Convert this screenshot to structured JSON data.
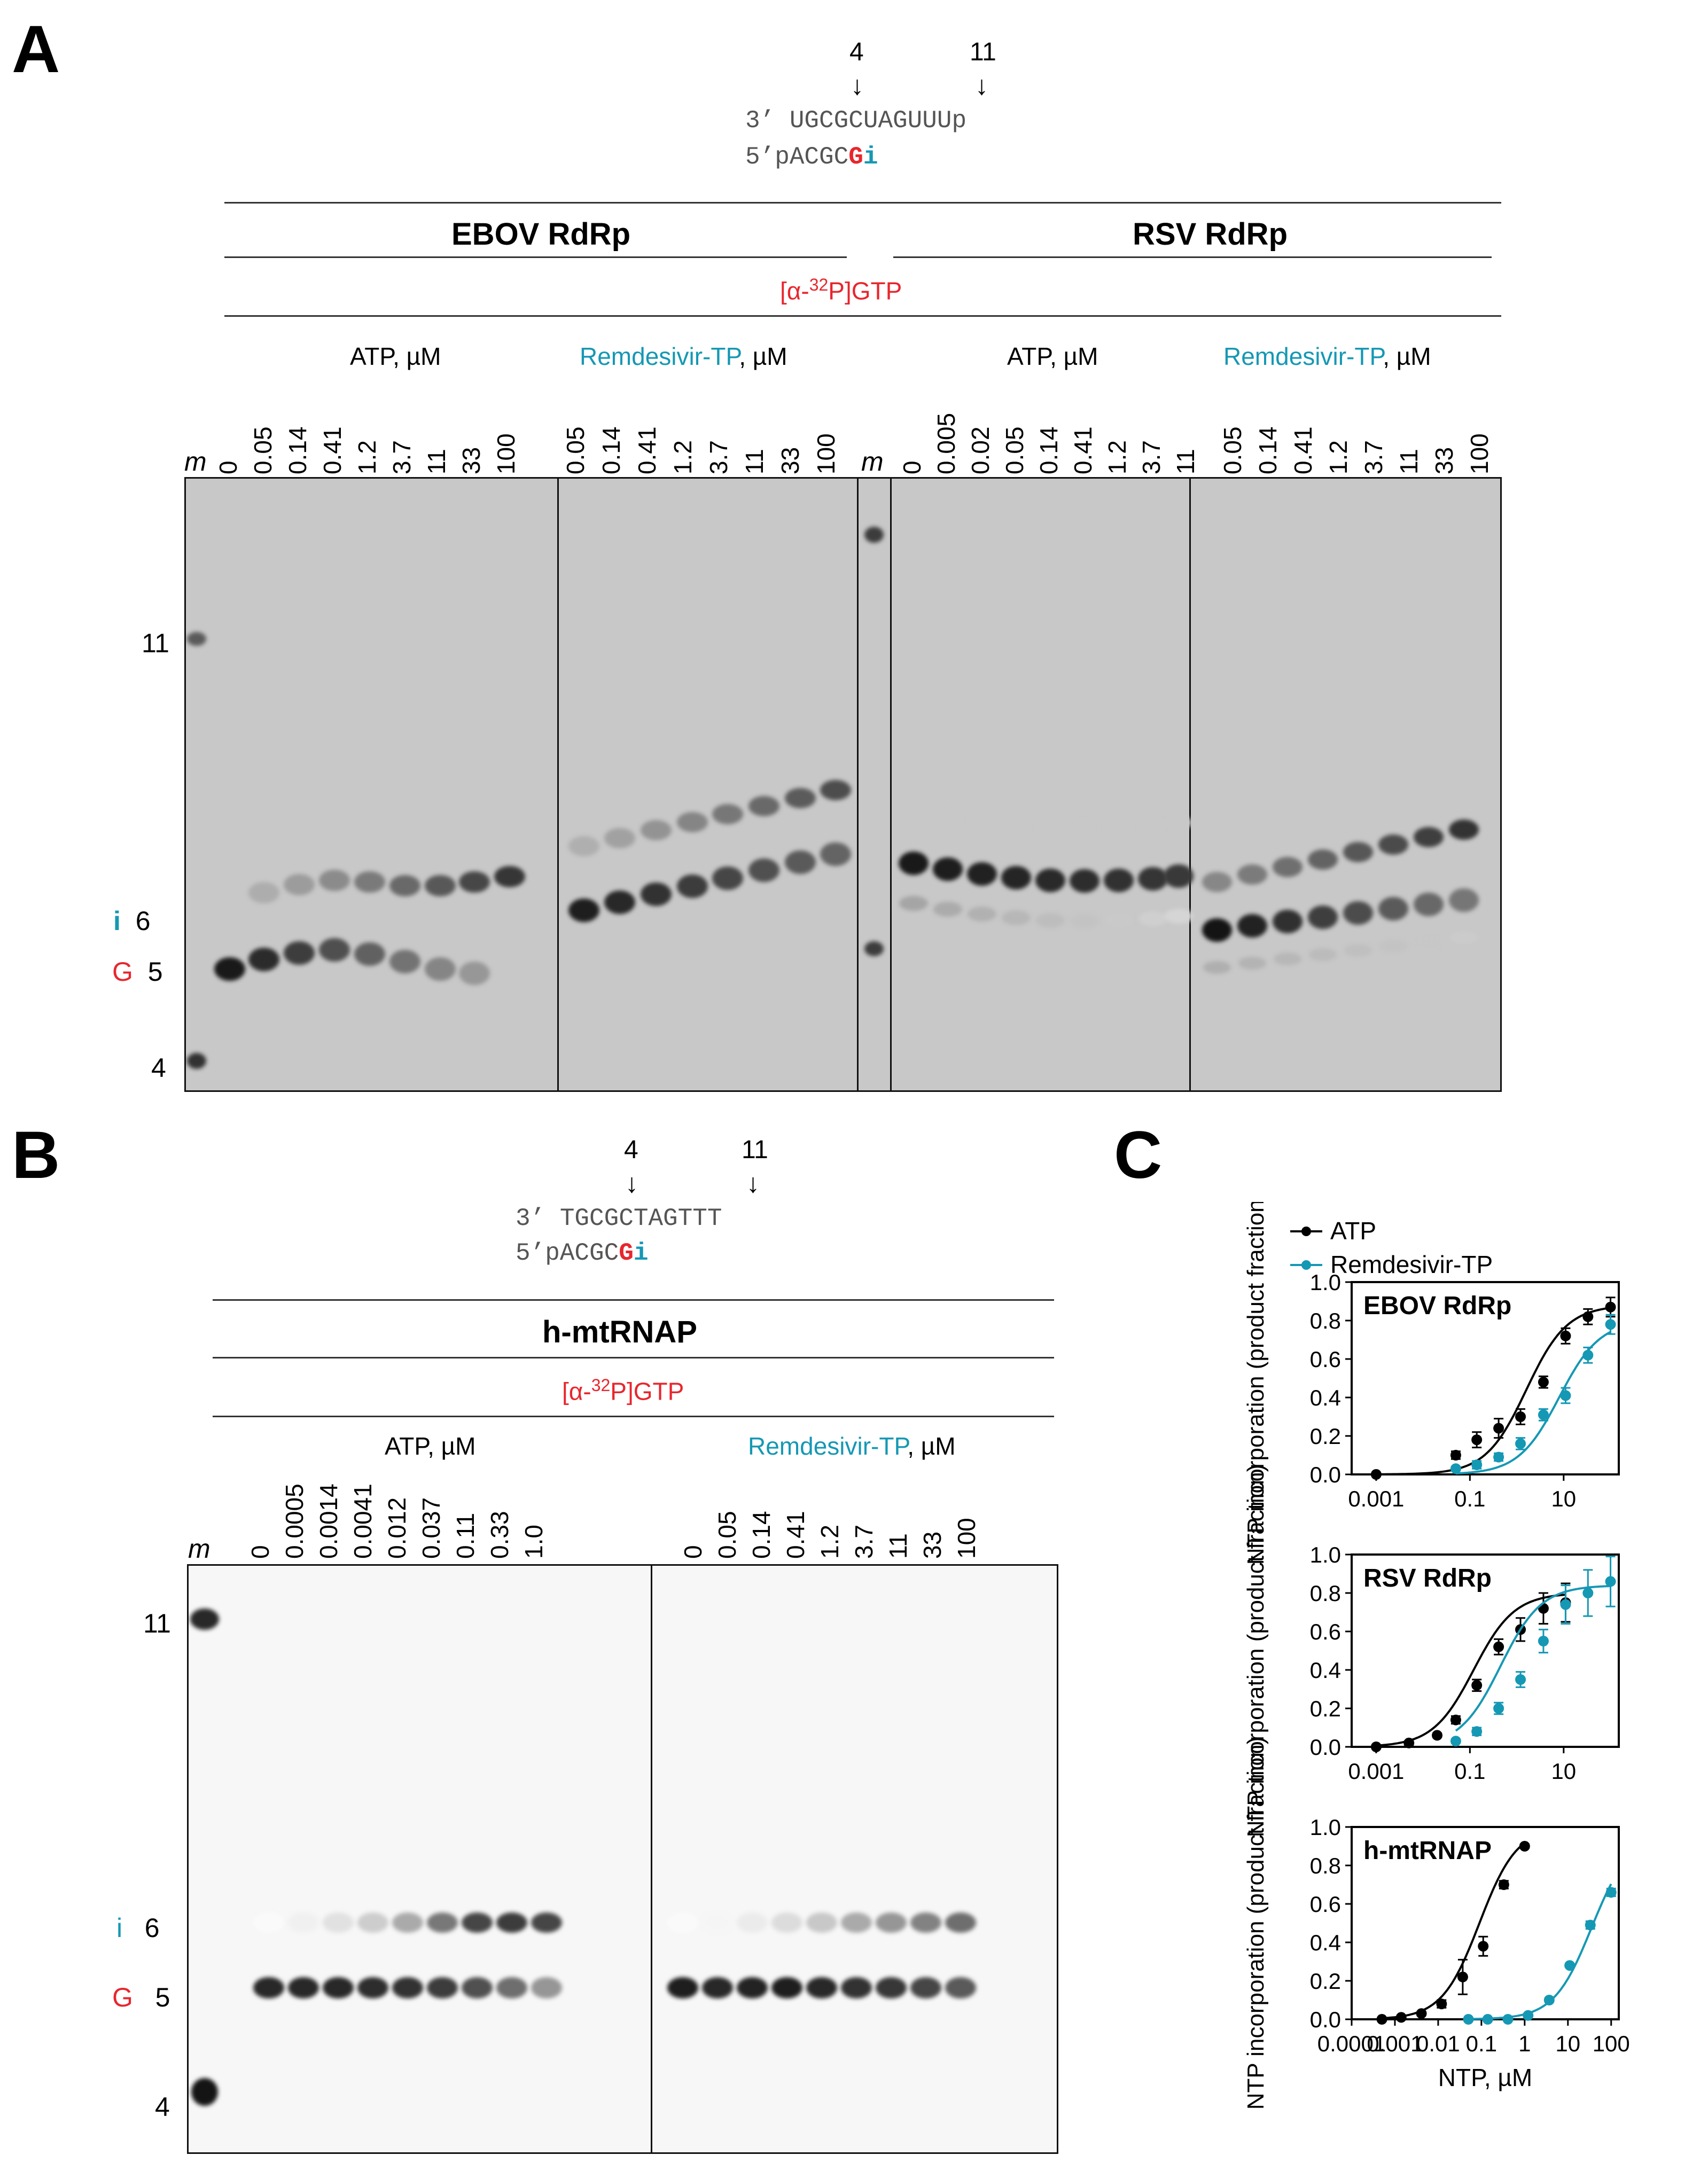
{
  "panels": {
    "a": "A",
    "b": "B",
    "c": "C"
  },
  "panel_a": {
    "arrow_labels": [
      "4",
      "11"
    ],
    "template_prefix": "3’ ",
    "template_seq": "UGCGCUAGUUUp",
    "primer_prefix": "5’pACGC",
    "primer_G": "G",
    "primer_i": "i",
    "group_left": "EBOV RdRp",
    "group_right": "RSV RdRp",
    "radiolabel": "[α-32P]GTP",
    "ebov_atp_header": "ATP, µM",
    "ebov_rdv_header_teal": "Remdesivir-TP",
    "ebov_rdv_header_suffix": ", µM",
    "rsv_atp_header": "ATP, µM",
    "rsv_rdv_header_teal": "Remdesivir-TP",
    "rsv_rdv_header_suffix": ", µM",
    "marker_label": "m",
    "ebov_atp_lanes": [
      "0",
      "0.05",
      "0.14",
      "0.41",
      "1.2",
      "3.7",
      "11",
      "33",
      "100"
    ],
    "ebov_rdv_lanes": [
      "0.05",
      "0.14",
      "0.41",
      "1.2",
      "3.7",
      "11",
      "33",
      "100"
    ],
    "rsv_atp_lanes": [
      "0",
      "0.005",
      "0.02",
      "0.05",
      "0.14",
      "0.41",
      "1.2",
      "3.7",
      "11"
    ],
    "rsv_rdv_lanes": [
      "0.05",
      "0.14",
      "0.41",
      "1.2",
      "3.7",
      "11",
      "33",
      "100"
    ],
    "size_11": "11",
    "size_6": "6",
    "size_5": "5",
    "size_4": "4",
    "i_label": "i",
    "g_label": "G"
  },
  "panel_b": {
    "arrow_labels": [
      "4",
      "11"
    ],
    "template_prefix": "3’ ",
    "template_seq": "TGCGCTAGTTT",
    "primer_prefix": "5’pACGC",
    "primer_G": "G",
    "primer_i": "i",
    "group": "h-mtRNAP",
    "radiolabel": "[α-32P]GTP",
    "atp_header": "ATP, µM",
    "rdv_header_teal": "Remdesivir-TP",
    "rdv_header_suffix": ", µM",
    "marker_label": "m",
    "atp_lanes": [
      "0",
      "0.0005",
      "0.0014",
      "0.0041",
      "0.012",
      "0.037",
      "0.11",
      "0.33",
      "1.0"
    ],
    "rdv_lanes": [
      "0",
      "0.05",
      "0.14",
      "0.41",
      "1.2",
      "3.7",
      "11",
      "33",
      "100"
    ],
    "size_11": "11",
    "size_6": "6",
    "size_5": "5",
    "size_4": "4",
    "i_label": "i",
    "g_label": "G"
  },
  "colors": {
    "atp": "#000000",
    "remdesivir": "#1598b4",
    "gtp_red": "#e8262d"
  },
  "chart_data": [
    {
      "type": "scatter",
      "title": "EBOV RdRp",
      "xlabel": "",
      "ylabel": "NTP incorporation (product fraction)",
      "xscale": "log",
      "xlim": [
        0.0003,
        150
      ],
      "ylim": [
        0,
        1.0
      ],
      "yticks": [
        "0.0",
        "0.2",
        "0.4",
        "0.6",
        "0.8",
        "1.0"
      ],
      "xticks": [
        "0.001",
        "0.1",
        "10"
      ],
      "legend": [
        "ATP",
        "Remdesivir-TP"
      ],
      "series": [
        {
          "name": "ATP",
          "x": [
            0.001,
            0.05,
            0.14,
            0.41,
            1.2,
            3.7,
            11,
            33,
            100
          ],
          "y": [
            0.0,
            0.1,
            0.18,
            0.24,
            0.3,
            0.48,
            0.72,
            0.82,
            0.87
          ],
          "err": [
            0,
            0.02,
            0.04,
            0.05,
            0.04,
            0.03,
            0.04,
            0.04,
            0.05
          ],
          "fit_ec50": 1.6,
          "fit_max": 0.88
        },
        {
          "name": "Remdesivir-TP",
          "x": [
            0.05,
            0.14,
            0.41,
            1.2,
            3.7,
            11,
            33,
            100
          ],
          "y": [
            0.03,
            0.05,
            0.09,
            0.16,
            0.31,
            0.41,
            0.62,
            0.78
          ],
          "err": [
            0.01,
            0.02,
            0.02,
            0.03,
            0.03,
            0.04,
            0.04,
            0.05
          ],
          "fit_ec50": 8.0,
          "fit_max": 0.8
        }
      ]
    },
    {
      "type": "scatter",
      "title": "RSV RdRp",
      "xlabel": "",
      "ylabel": "NTP incorporation (product fraction)",
      "xscale": "log",
      "xlim": [
        0.0003,
        150
      ],
      "ylim": [
        0,
        1.0
      ],
      "yticks": [
        "0.0",
        "0.2",
        "0.4",
        "0.6",
        "0.8",
        "1.0"
      ],
      "xticks": [
        "0.001",
        "0.1",
        "10"
      ],
      "series": [
        {
          "name": "ATP",
          "x": [
            0.001,
            0.005,
            0.02,
            0.05,
            0.14,
            0.41,
            1.2,
            3.7,
            11
          ],
          "y": [
            0.0,
            0.02,
            0.06,
            0.14,
            0.32,
            0.52,
            0.61,
            0.72,
            0.75
          ],
          "err": [
            0,
            0.01,
            0.01,
            0.02,
            0.03,
            0.04,
            0.06,
            0.08,
            0.1
          ],
          "fit_ec50": 0.12,
          "fit_max": 0.8
        },
        {
          "name": "Remdesivir-TP",
          "x": [
            0.05,
            0.14,
            0.41,
            1.2,
            3.7,
            11,
            33,
            100
          ],
          "y": [
            0.03,
            0.08,
            0.2,
            0.35,
            0.55,
            0.74,
            0.8,
            0.86
          ],
          "err": [
            0.01,
            0.02,
            0.03,
            0.04,
            0.06,
            0.1,
            0.12,
            0.13
          ],
          "fit_ec50": 0.45,
          "fit_max": 0.84
        }
      ]
    },
    {
      "type": "scatter",
      "title": "h-mtRNAP",
      "xlabel": "NTP, µM",
      "ylabel": "NTP incorporation (product fraction)",
      "xscale": "log",
      "xlim": [
        0.0001,
        150
      ],
      "ylim": [
        0,
        1.0
      ],
      "yticks": [
        "0.0",
        "0.2",
        "0.4",
        "0.6",
        "0.8",
        "1.0"
      ],
      "xticks": [
        "0.0001",
        "0.001",
        "0.01",
        "0.1",
        "1",
        "10",
        "100"
      ],
      "series": [
        {
          "name": "ATP",
          "x": [
            0.0005,
            0.0014,
            0.0041,
            0.012,
            0.037,
            0.11,
            0.33,
            1.0
          ],
          "y": [
            0.0,
            0.01,
            0.03,
            0.08,
            0.22,
            0.38,
            0.7,
            0.9
          ],
          "err": [
            0,
            0.01,
            0.01,
            0.02,
            0.09,
            0.05,
            0.02,
            0.01
          ],
          "fit_ec50": 0.09,
          "fit_max": 1.0
        },
        {
          "name": "Remdesivir-TP",
          "x": [
            0.05,
            0.14,
            0.41,
            1.2,
            3.7,
            11,
            33,
            100
          ],
          "y": [
            0.0,
            0.0,
            0.0,
            0.02,
            0.1,
            0.28,
            0.49,
            0.66
          ],
          "err": [
            0,
            0,
            0,
            0.01,
            0.01,
            0.01,
            0.02,
            0.02
          ],
          "fit_ec50": 35,
          "fit_max": 0.95
        }
      ]
    }
  ]
}
